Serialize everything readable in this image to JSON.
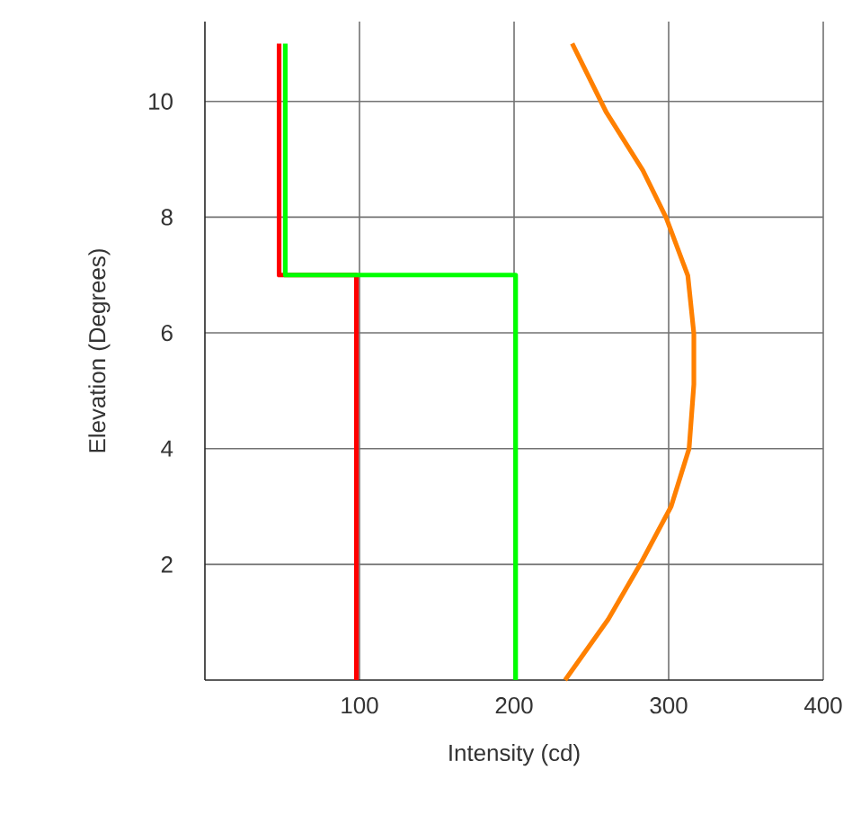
{
  "chart_data": {
    "type": "line",
    "xlabel": "Intensity (cd)",
    "ylabel": "Elevation (Degrees)",
    "xlim": [
      0,
      400
    ],
    "ylim": [
      0,
      11.38
    ],
    "xticks": [
      100,
      200,
      300,
      400
    ],
    "yticks": [
      2,
      4,
      6,
      8,
      10
    ],
    "grid": true,
    "marker": "none",
    "line_style": "solid",
    "series": [
      {
        "color": "#ff0000",
        "x": [
          48,
          48,
          98,
          98
        ],
        "values": [
          11,
          7,
          7,
          0
        ]
      },
      {
        "color": "#00ff00",
        "x": [
          52,
          52,
          201,
          201
        ],
        "values": [
          11,
          7,
          7,
          0
        ]
      },
      {
        "color": "#ff8000",
        "x": [
          237.6,
          259.7,
          283.3,
          298.4,
          312.4,
          316.3,
          316.3,
          313.2,
          301.6,
          282.2,
          260.9,
          233
        ],
        "values": [
          11.0,
          9.81,
          8.81,
          7.99,
          6.99,
          5.99,
          5.11,
          4.0,
          3.0,
          2.03,
          1.05,
          0
        ]
      }
    ]
  }
}
